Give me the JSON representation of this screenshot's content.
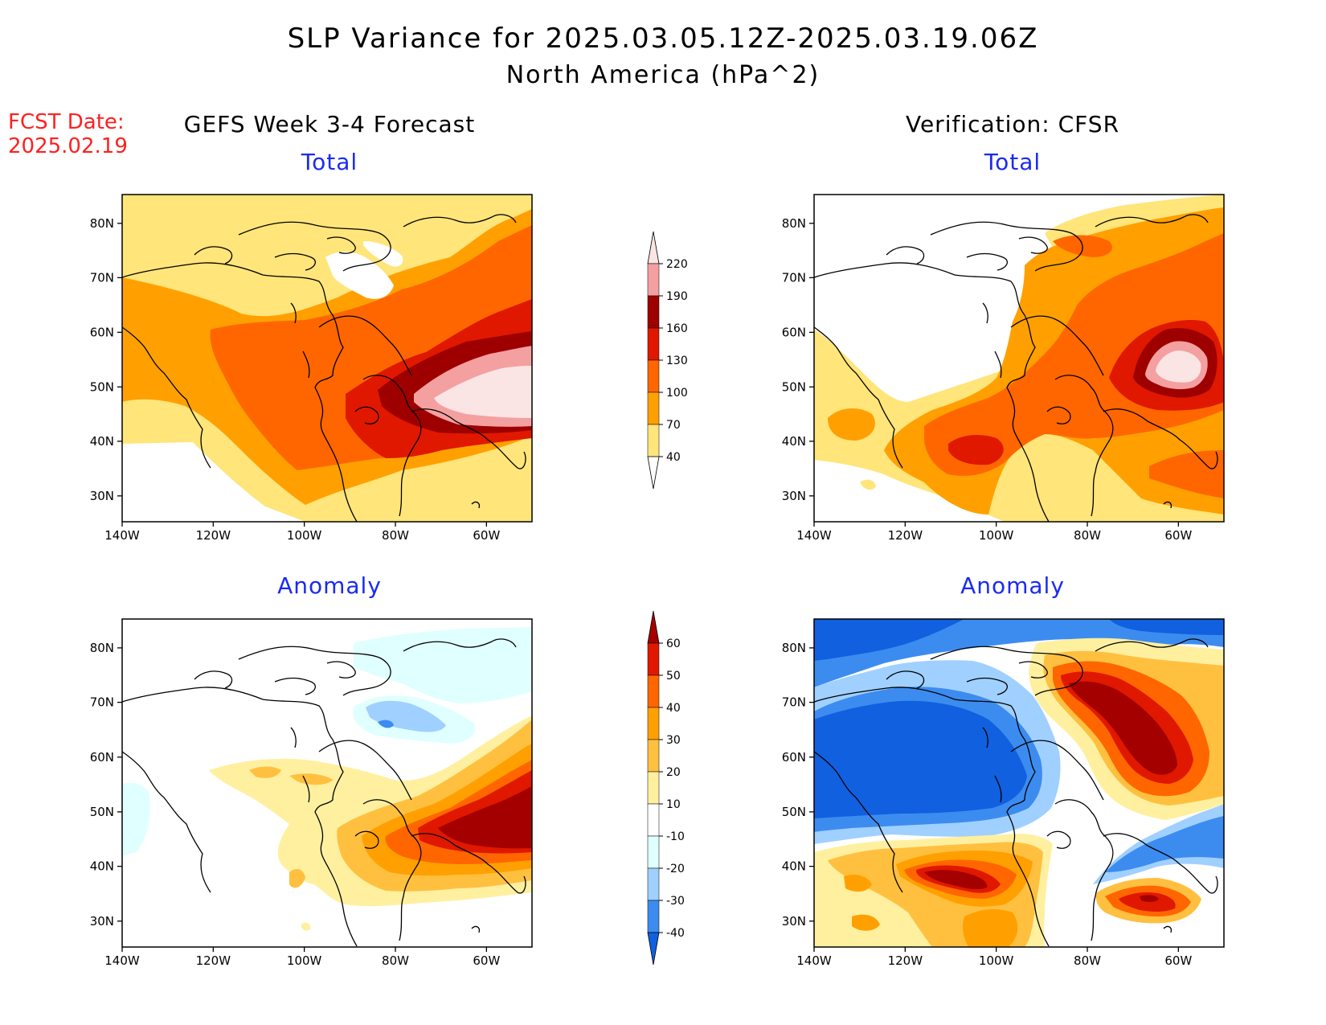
{
  "title": {
    "line1": "SLP Variance for 2025.03.05.12Z-2025.03.19.06Z",
    "line2": "North America (hPa^2)"
  },
  "fcst_date": {
    "label": "FCST Date:",
    "value": "2025.02.19"
  },
  "columns": {
    "left": "GEFS Week 3-4 Forecast",
    "right": "Verification: CFSR"
  },
  "panels": [
    {
      "id": "gefs-total",
      "subtitle": "Total",
      "scale": "total"
    },
    {
      "id": "cfsr-total",
      "subtitle": "Total",
      "scale": "total"
    },
    {
      "id": "gefs-anomaly",
      "subtitle": "Anomaly",
      "scale": "anomaly"
    },
    {
      "id": "cfsr-anomaly",
      "subtitle": "Anomaly",
      "scale": "anomaly"
    }
  ],
  "axes": {
    "lon_ticks": [
      "140W",
      "120W",
      "100W",
      "80W",
      "60W"
    ],
    "lat_ticks": [
      "80N",
      "70N",
      "60N",
      "50N",
      "40N",
      "30N"
    ]
  },
  "colorbars": {
    "total": {
      "levels": [
        "220",
        "190",
        "160",
        "130",
        "100",
        "70",
        "40"
      ],
      "colors": [
        "#fbe4e4",
        "#f4a0a0",
        "#9e0000",
        "#e01800",
        "#ff6600",
        "#ffa000",
        "#ffe57a",
        "#ffffff"
      ]
    },
    "anomaly": {
      "levels": [
        "60",
        "50",
        "40",
        "30",
        "20",
        "10",
        "-10",
        "-20",
        "-30",
        "-40"
      ],
      "colors": [
        "#a50000",
        "#e01800",
        "#ff6600",
        "#ffa000",
        "#ffc040",
        "#fff0a0",
        "#ffffff",
        "#e0ffff",
        "#a0d0ff",
        "#3c8cf0",
        "#1060e0"
      ]
    }
  }
}
